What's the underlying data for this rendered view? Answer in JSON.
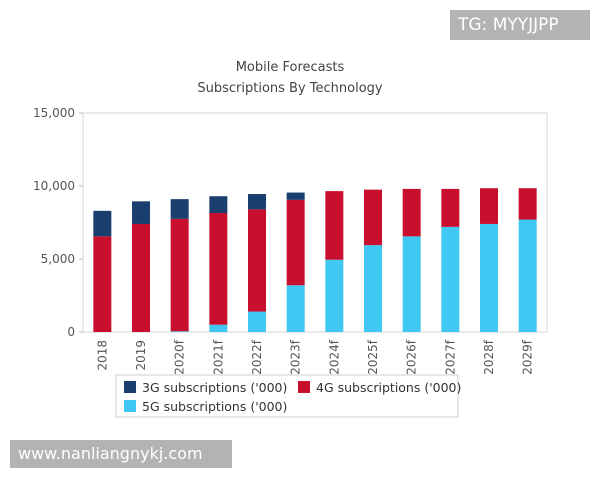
{
  "watermarks": {
    "top": "TG: MYYJJPP",
    "bottom": "www.nanliangnykj.com"
  },
  "chart_data": {
    "type": "bar",
    "stacked": true,
    "title": "Mobile Forecasts",
    "subtitle": "Subscriptions By Technology",
    "xlabel": "",
    "ylabel": "",
    "ylim": [
      0,
      15000
    ],
    "yticks": [
      0,
      5000,
      10000,
      15000
    ],
    "ytick_labels": [
      "0",
      "5,000",
      "10,000",
      "15,000"
    ],
    "grid": false,
    "legend_position": "bottom",
    "categories": [
      "2018",
      "2019",
      "2020f",
      "2021f",
      "2022f",
      "2023f",
      "2024f",
      "2025f",
      "2026f",
      "2027f",
      "2028f",
      "2029f"
    ],
    "series": [
      {
        "name": "5G subscriptions ('000)",
        "color": "#3fc8f2",
        "values": [
          0,
          0,
          50,
          500,
          1400,
          3200,
          4950,
          5950,
          6550,
          7200,
          7400,
          7700
        ]
      },
      {
        "name": "4G subscriptions ('000)",
        "color": "#c8102e",
        "values": [
          6550,
          7400,
          7700,
          7650,
          7000,
          5850,
          4700,
          3800,
          3250,
          2600,
          2450,
          2150
        ]
      },
      {
        "name": "3G subscriptions ('000)",
        "color": "#1a3e6e",
        "values": [
          1750,
          1550,
          1350,
          1150,
          1050,
          500,
          0,
          0,
          0,
          0,
          0,
          0
        ]
      }
    ],
    "legend_order": [
      {
        "label": "3G subscriptions ('000)",
        "color": "#1a3e6e"
      },
      {
        "label": "4G subscriptions ('000)",
        "color": "#c8102e"
      },
      {
        "label": "5G subscriptions ('000)",
        "color": "#3fc8f2"
      }
    ]
  }
}
